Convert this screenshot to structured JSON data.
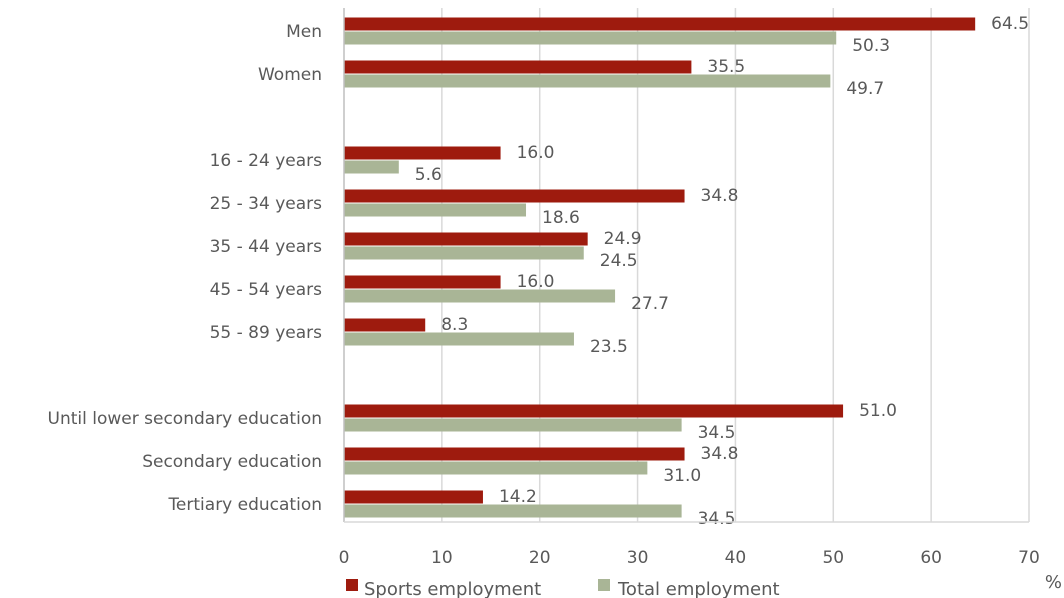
{
  "chart_data": {
    "type": "bar",
    "orientation": "horizontal",
    "groups": [
      [
        "Men",
        "Women"
      ],
      [
        "16 - 24 years",
        "25 - 34 years",
        "35 - 44 years",
        "45 - 54 years",
        "55 - 89 years"
      ],
      [
        "Until lower secondary education",
        "Secondary education",
        "Tertiary education"
      ]
    ],
    "categories": [
      "Men",
      "Women",
      "16 - 24 years",
      "25 - 34 years",
      "35 - 44 years",
      "45 - 54 years",
      "55 - 89 years",
      "Until lower secondary education",
      "Secondary education",
      "Tertiary education"
    ],
    "series": [
      {
        "name": "Sports employment",
        "color": "#9e1b0e",
        "values": [
          64.5,
          35.5,
          16.0,
          34.8,
          24.9,
          16.0,
          8.3,
          51.0,
          34.8,
          14.2
        ]
      },
      {
        "name": "Total employment",
        "color": "#a9b596",
        "values": [
          50.3,
          49.7,
          5.6,
          18.6,
          24.5,
          27.7,
          23.5,
          34.5,
          31.0,
          34.5
        ]
      }
    ],
    "xlim": [
      0,
      70
    ],
    "xticks": [
      0,
      10,
      20,
      30,
      40,
      50,
      60,
      70
    ],
    "unit": "%",
    "grid": true,
    "legend": "bottom"
  }
}
